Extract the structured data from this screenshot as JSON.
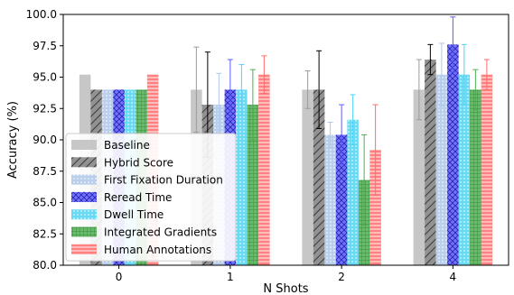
{
  "chart_data": {
    "type": "bar",
    "xlabel": "N Shots",
    "ylabel": "Accuracy (%)",
    "ylim": [
      80.0,
      100.0
    ],
    "yticks": [
      "80.0",
      "82.5",
      "85.0",
      "87.5",
      "90.0",
      "92.5",
      "95.0",
      "97.5",
      "100.0"
    ],
    "categories": [
      "0",
      "1",
      "2",
      "4"
    ],
    "legend_position": "lower-left",
    "series": [
      {
        "name": "Baseline",
        "color": "#bdbdbd",
        "hatch": "none",
        "values": [
          95.2,
          94.0,
          94.0,
          94.0
        ],
        "err": [
          0,
          3.4,
          1.5,
          2.4
        ]
      },
      {
        "name": "Hybrid Score",
        "color": "#7f7f7f",
        "hatch": "diag",
        "values": [
          94.0,
          92.8,
          94.0,
          96.4
        ],
        "err": [
          0,
          4.2,
          3.1,
          1.2
        ]
      },
      {
        "name": "First Fixation Duration",
        "color": "#aec7e8",
        "hatch": "dots",
        "values": [
          94.0,
          92.8,
          90.4,
          95.2
        ],
        "err": [
          0,
          2.5,
          1.0,
          2.5
        ]
      },
      {
        "name": "Reread Time",
        "color": "#5b5bff",
        "hatch": "cross",
        "values": [
          94.0,
          94.0,
          90.4,
          97.6
        ],
        "err": [
          0,
          2.4,
          2.4,
          2.2
        ]
      },
      {
        "name": "Dwell Time",
        "color": "#4fd4f4",
        "hatch": "dots",
        "values": [
          94.0,
          94.0,
          91.6,
          95.2
        ],
        "err": [
          0,
          2.0,
          2.0,
          2.4
        ]
      },
      {
        "name": "Integrated Gradients",
        "color": "#4caf50",
        "hatch": "grid",
        "values": [
          94.0,
          92.8,
          86.8,
          94.0
        ],
        "err": [
          0,
          2.8,
          3.6,
          1.6
        ]
      },
      {
        "name": "Human Annotations",
        "color": "#ff6b6b",
        "hatch": "horiz",
        "values": [
          95.2,
          95.2,
          89.2,
          95.2
        ],
        "err": [
          0,
          1.5,
          3.6,
          1.2
        ]
      }
    ]
  }
}
